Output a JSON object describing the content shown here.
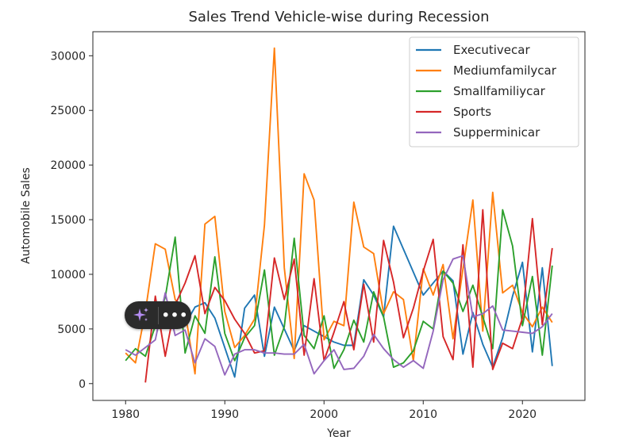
{
  "chart_data": {
    "type": "line",
    "title": "Sales Trend Vehicle-wise during Recession",
    "xlabel": "Year",
    "ylabel": "Automobile Sales",
    "xlim": [
      1976.7,
      2026.3
    ],
    "ylim": [
      -1540,
      32200
    ],
    "xticks": [
      1980,
      1990,
      2000,
      2010,
      2020
    ],
    "yticks": [
      0,
      5000,
      10000,
      15000,
      20000,
      25000,
      30000
    ],
    "grid": false,
    "legend_position": "top-right",
    "series": [
      {
        "name": "Executivecar",
        "color": "#1f77b4",
        "points": [
          [
            1986,
            5400
          ],
          [
            1987,
            7000
          ],
          [
            1988,
            7400
          ],
          [
            1989,
            6000
          ],
          [
            1990,
            3300
          ],
          [
            1991,
            600
          ],
          [
            1992,
            6900
          ],
          [
            1993,
            8100
          ],
          [
            1994,
            2500
          ],
          [
            1995,
            7000
          ],
          [
            1996,
            5000
          ],
          [
            1997,
            3000
          ],
          [
            1998,
            5300
          ],
          [
            1999,
            4800
          ],
          [
            2000,
            4300
          ],
          [
            2001,
            3800
          ],
          [
            2002,
            3500
          ],
          [
            2003,
            3500
          ],
          [
            2004,
            9500
          ],
          [
            2005,
            8100
          ],
          [
            2006,
            6100
          ],
          [
            2007,
            14400
          ],
          [
            2010,
            8100
          ],
          [
            2012,
            10300
          ],
          [
            2013,
            9400
          ],
          [
            2014,
            2700
          ],
          [
            2015,
            6500
          ],
          [
            2016,
            3600
          ],
          [
            2017,
            1500
          ],
          [
            2018,
            4200
          ],
          [
            2019,
            8000
          ],
          [
            2020,
            11100
          ],
          [
            2021,
            2900
          ],
          [
            2022,
            10600
          ],
          [
            2023,
            1600
          ]
        ]
      },
      {
        "name": "Mediumfamilycar",
        "color": "#ff7f0e",
        "points": [
          [
            1980,
            2800
          ],
          [
            1981,
            1900
          ],
          [
            1982,
            6600
          ],
          [
            1983,
            12800
          ],
          [
            1984,
            12300
          ],
          [
            1985,
            7700
          ],
          [
            1986,
            6600
          ],
          [
            1987,
            900
          ],
          [
            1988,
            14600
          ],
          [
            1989,
            15300
          ],
          [
            1990,
            6600
          ],
          [
            1991,
            3300
          ],
          [
            1992,
            4400
          ],
          [
            1993,
            5900
          ],
          [
            1994,
            14500
          ],
          [
            1995,
            30700
          ],
          [
            1996,
            10600
          ],
          [
            1997,
            2300
          ],
          [
            1998,
            19200
          ],
          [
            1999,
            16800
          ],
          [
            2000,
            4000
          ],
          [
            2001,
            5700
          ],
          [
            2002,
            5300
          ],
          [
            2003,
            16600
          ],
          [
            2004,
            12500
          ],
          [
            2005,
            11900
          ],
          [
            2006,
            6400
          ],
          [
            2007,
            8400
          ],
          [
            2008,
            7700
          ],
          [
            2009,
            2100
          ],
          [
            2010,
            10500
          ],
          [
            2011,
            8100
          ],
          [
            2012,
            10900
          ],
          [
            2013,
            4100
          ],
          [
            2014,
            10500
          ],
          [
            2015,
            16800
          ],
          [
            2016,
            4800
          ],
          [
            2017,
            17500
          ],
          [
            2018,
            8300
          ],
          [
            2019,
            9000
          ],
          [
            2020,
            6500
          ],
          [
            2021,
            5200
          ],
          [
            2022,
            7000
          ],
          [
            2023,
            5600
          ]
        ]
      },
      {
        "name": "Smallfamiliycar",
        "color": "#2ca02c",
        "points": [
          [
            1980,
            2100
          ],
          [
            1981,
            3200
          ],
          [
            1982,
            2500
          ],
          [
            1983,
            5300
          ],
          [
            1984,
            7900
          ],
          [
            1985,
            13400
          ],
          [
            1986,
            2800
          ],
          [
            1987,
            6200
          ],
          [
            1988,
            4600
          ],
          [
            1989,
            11600
          ],
          [
            1990,
            4600
          ],
          [
            1991,
            2100
          ],
          [
            1992,
            4200
          ],
          [
            1993,
            5300
          ],
          [
            1994,
            10400
          ],
          [
            1995,
            2600
          ],
          [
            1996,
            5200
          ],
          [
            1997,
            13300
          ],
          [
            1998,
            4400
          ],
          [
            1999,
            3200
          ],
          [
            2000,
            6200
          ],
          [
            2001,
            1400
          ],
          [
            2002,
            3100
          ],
          [
            2003,
            5800
          ],
          [
            2004,
            3800
          ],
          [
            2005,
            8400
          ],
          [
            2006,
            6100
          ],
          [
            2007,
            1500
          ],
          [
            2008,
            1900
          ],
          [
            2009,
            3000
          ],
          [
            2010,
            5700
          ],
          [
            2011,
            5000
          ],
          [
            2012,
            10300
          ],
          [
            2013,
            9200
          ],
          [
            2014,
            6600
          ],
          [
            2015,
            9000
          ],
          [
            2016,
            6100
          ],
          [
            2017,
            3200
          ],
          [
            2018,
            15900
          ],
          [
            2019,
            12600
          ],
          [
            2020,
            5300
          ],
          [
            2021,
            9800
          ],
          [
            2022,
            2600
          ],
          [
            2023,
            10800
          ]
        ]
      },
      {
        "name": "Sports",
        "color": "#d62728",
        "points": [
          [
            1982,
            100
          ],
          [
            1983,
            8000
          ],
          [
            1984,
            2500
          ],
          [
            1985,
            7200
          ],
          [
            1986,
            9200
          ],
          [
            1987,
            11700
          ],
          [
            1988,
            6400
          ],
          [
            1989,
            8800
          ],
          [
            1990,
            7600
          ],
          [
            1991,
            5900
          ],
          [
            1992,
            4600
          ],
          [
            1993,
            2800
          ],
          [
            1994,
            3000
          ],
          [
            1995,
            11500
          ],
          [
            1996,
            7700
          ],
          [
            1997,
            11400
          ],
          [
            1998,
            2600
          ],
          [
            1999,
            9600
          ],
          [
            2000,
            2100
          ],
          [
            2001,
            4700
          ],
          [
            2002,
            7500
          ],
          [
            2003,
            3100
          ],
          [
            2004,
            9100
          ],
          [
            2005,
            3800
          ],
          [
            2006,
            13100
          ],
          [
            2007,
            9300
          ],
          [
            2008,
            4200
          ],
          [
            2009,
            6900
          ],
          [
            2010,
            10300
          ],
          [
            2011,
            13200
          ],
          [
            2012,
            4300
          ],
          [
            2013,
            2200
          ],
          [
            2014,
            12700
          ],
          [
            2015,
            1500
          ],
          [
            2016,
            15900
          ],
          [
            2017,
            1300
          ],
          [
            2018,
            3700
          ],
          [
            2019,
            3200
          ],
          [
            2020,
            6000
          ],
          [
            2021,
            15100
          ],
          [
            2022,
            5400
          ],
          [
            2023,
            12400
          ]
        ]
      },
      {
        "name": "Supperminicar",
        "color": "#9467bd",
        "points": [
          [
            1980,
            3100
          ],
          [
            1981,
            2600
          ],
          [
            1982,
            3300
          ],
          [
            1983,
            4000
          ],
          [
            1984,
            8300
          ],
          [
            1985,
            4400
          ],
          [
            1986,
            4900
          ],
          [
            1987,
            1900
          ],
          [
            1988,
            4100
          ],
          [
            1989,
            3400
          ],
          [
            1990,
            800
          ],
          [
            1991,
            2700
          ],
          [
            1992,
            3100
          ],
          [
            1993,
            3100
          ],
          [
            1994,
            2800
          ],
          [
            1995,
            2800
          ],
          [
            1996,
            2700
          ],
          [
            1997,
            2700
          ],
          [
            1998,
            3600
          ],
          [
            1999,
            900
          ],
          [
            2000,
            2100
          ],
          [
            2001,
            3100
          ],
          [
            2002,
            1300
          ],
          [
            2003,
            1400
          ],
          [
            2004,
            2500
          ],
          [
            2005,
            4500
          ],
          [
            2006,
            3200
          ],
          [
            2007,
            2200
          ],
          [
            2008,
            1500
          ],
          [
            2009,
            2100
          ],
          [
            2010,
            1400
          ],
          [
            2011,
            4800
          ],
          [
            2012,
            9500
          ],
          [
            2013,
            11400
          ],
          [
            2014,
            11700
          ],
          [
            2015,
            6100
          ],
          [
            2016,
            6400
          ],
          [
            2017,
            7100
          ],
          [
            2018,
            4900
          ],
          [
            2019,
            4800
          ],
          [
            2020,
            4700
          ],
          [
            2021,
            4600
          ],
          [
            2022,
            5200
          ],
          [
            2023,
            6400
          ]
        ]
      }
    ]
  },
  "overlay": {
    "sparkle_icon": "sparkle-icon",
    "more_label": "•••"
  }
}
